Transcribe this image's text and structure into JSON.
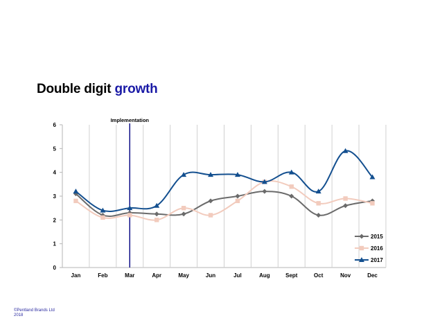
{
  "slide": {
    "title_part1": "Double digit",
    "title_part2": "growth",
    "footer_line1": "©Pentland Brands Ltd",
    "footer_line2": "2018"
  },
  "colors": {
    "accent": "#1a1aa6",
    "series_2015": "#6b6b6b",
    "series_2016": "#f2cbbd",
    "series_2017": "#134f8f",
    "implementation_line": "#000080"
  },
  "chart_data": {
    "type": "line",
    "title": "",
    "categories": [
      "Jan",
      "Feb",
      "Mar",
      "Apr",
      "May",
      "Jun",
      "Jul",
      "Aug",
      "Sept",
      "Oct",
      "Nov",
      "Dec"
    ],
    "series": [
      {
        "name": "2015",
        "marker": "diamond",
        "values": [
          3.1,
          2.2,
          2.3,
          2.25,
          2.25,
          2.8,
          3.0,
          3.2,
          3.0,
          2.2,
          2.6,
          2.8
        ]
      },
      {
        "name": "2016",
        "marker": "square",
        "values": [
          2.8,
          2.1,
          2.2,
          2.0,
          2.5,
          2.2,
          2.8,
          3.6,
          3.4,
          2.7,
          2.9,
          2.7
        ]
      },
      {
        "name": "2017",
        "marker": "triangle",
        "values": [
          3.2,
          2.4,
          2.5,
          2.6,
          3.9,
          3.9,
          3.9,
          3.6,
          4.0,
          3.2,
          4.9,
          3.8
        ]
      }
    ],
    "ylim": [
      0,
      6
    ],
    "yticks": [
      0,
      1,
      2,
      3,
      4,
      5,
      6
    ],
    "xlabel": "",
    "ylabel": "",
    "grid": "vertical",
    "legend": "bottom-right",
    "annotation": {
      "label": "Implementation",
      "at_category": "Mar"
    }
  }
}
